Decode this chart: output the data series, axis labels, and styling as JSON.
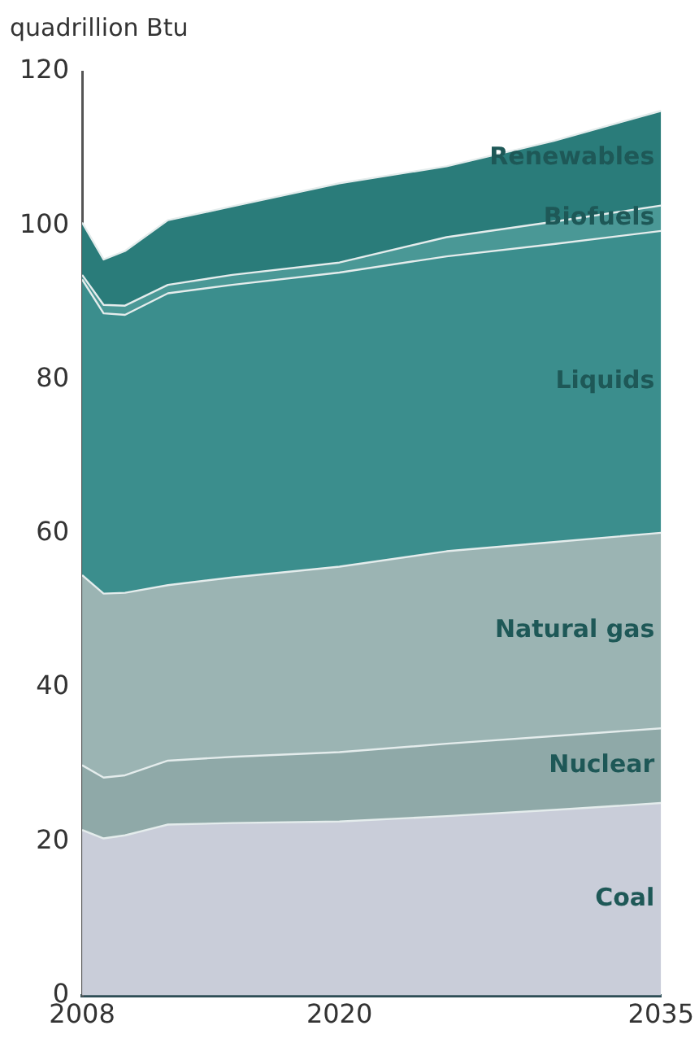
{
  "chart_data": {
    "type": "area",
    "stacked": true,
    "ylabel": "quadrillion Btu",
    "x": [
      2008,
      2009,
      2010,
      2012,
      2015,
      2020,
      2025,
      2030,
      2035
    ],
    "xlim": [
      2008,
      2035
    ],
    "xticks": [
      2008,
      2020,
      2035
    ],
    "ylim": [
      0,
      120
    ],
    "yticks": [
      0,
      20,
      40,
      60,
      80,
      100,
      120
    ],
    "grid": false,
    "legend": false,
    "series": [
      {
        "name": "Coal",
        "color": "#c9cdd9",
        "values": [
          21.5,
          20.4,
          20.8,
          22.2,
          22.4,
          22.6,
          23.3,
          24.1,
          25.0
        ]
      },
      {
        "name": "Nuclear",
        "color": "#8fa9a8",
        "values": [
          8.4,
          7.9,
          7.8,
          8.3,
          8.6,
          9.0,
          9.4,
          9.6,
          9.7
        ]
      },
      {
        "name": "Natural gas",
        "color": "#9bb4b3",
        "values": [
          24.7,
          23.9,
          23.7,
          22.8,
          23.3,
          24.1,
          25.0,
          25.2,
          25.4
        ]
      },
      {
        "name": "Liquids",
        "color": "#3b8e8d",
        "values": [
          38.4,
          36.4,
          36.1,
          37.9,
          38.0,
          38.2,
          38.3,
          38.7,
          39.2
        ]
      },
      {
        "name": "Biofuels",
        "color": "#4a9896",
        "values": [
          0.6,
          1.1,
          1.2,
          1.1,
          1.3,
          1.3,
          2.5,
          2.9,
          3.3
        ]
      },
      {
        "name": "Renewables",
        "color": "#2a7c7a",
        "values": [
          6.8,
          5.9,
          7.1,
          8.4,
          8.9,
          10.3,
          9.2,
          10.5,
          12.3
        ]
      }
    ]
  }
}
